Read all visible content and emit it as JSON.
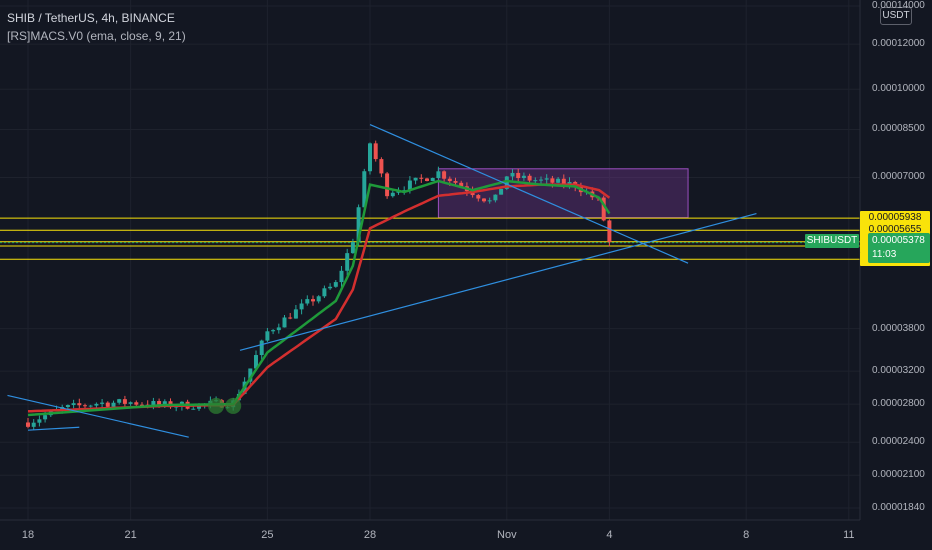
{
  "header": {
    "title": "SHIB / TetherUS, 4h, BINANCE",
    "indicator": "[RS]MACS.V0 (ema, close, 9, 21)"
  },
  "currency_button": "USDT",
  "symbol_tag": "SHIBUSDT",
  "countdown": "11:03",
  "colors": {
    "background": "#131722",
    "up": "#26a69a",
    "down": "#ef5350",
    "ema_fast": "#1f9a3a",
    "ema_slow": "#d32f2f",
    "trendline": "#2f8fe0",
    "level": "#f9e30a",
    "box": "#7e3a9a"
  },
  "chart_data": {
    "type": "candlestick",
    "title": "SHIB / TetherUS, 4h, BINANCE",
    "indicator": "[RS]MACS.V0 (ema, close, 9, 21)",
    "x_ticks": [
      {
        "label": "18",
        "day": 0
      },
      {
        "label": "21",
        "day": 3
      },
      {
        "label": "25",
        "day": 7
      },
      {
        "label": "28",
        "day": 10
      },
      {
        "label": "Nov",
        "day": 14
      },
      {
        "label": "4",
        "day": 17
      },
      {
        "label": "8",
        "day": 21
      },
      {
        "label": "11",
        "day": 24
      }
    ],
    "y_ticks": [
      "0.00014000",
      "0.00012000",
      "0.00010000",
      "0.00008500",
      "0.00007000",
      "0.00003800",
      "0.00003200",
      "0.00002800",
      "0.00002400",
      "0.00002100",
      "0.00001840"
    ],
    "y_tick_values": [
      0.00014,
      0.00012,
      0.0001,
      8.5e-05,
      7e-05,
      3.8e-05,
      3.2e-05,
      2.8e-05,
      2.4e-05,
      2.1e-05,
      1.84e-05
    ],
    "y_scale": "log",
    "horizontal_levels": [
      {
        "label": "0.00005938",
        "value": 5.938e-05
      },
      {
        "label": "0.00005655",
        "value": 5.655e-05
      },
      {
        "label": "0.00005397",
        "value": 5.397e-05
      },
      {
        "label": "0.00005307",
        "value": 5.307e-05
      },
      {
        "label": "0.00005029",
        "value": 5.029e-05
      }
    ],
    "current_price": {
      "label": "0.00005378",
      "value": 5.378e-05
    },
    "close_anchors": [
      [
        0,
        2.6e-05
      ],
      [
        1,
        2.75e-05
      ],
      [
        2,
        2.81e-05
      ],
      [
        3,
        2.82e-05
      ],
      [
        4,
        2.79e-05
      ],
      [
        5,
        2.79e-05
      ],
      [
        6,
        2.82e-05
      ],
      [
        6.3,
        3.05e-05
      ],
      [
        7,
        3.75e-05
      ],
      [
        8,
        4.15e-05
      ],
      [
        9,
        4.55e-05
      ],
      [
        9.5,
        5.45e-05
      ],
      [
        10,
        8.05e-05
      ],
      [
        10.5,
        6.6e-05
      ],
      [
        11,
        6.75e-05
      ],
      [
        12,
        7.15e-05
      ],
      [
        13,
        6.6e-05
      ],
      [
        13.6,
        6.3e-05
      ],
      [
        14,
        7.05e-05
      ],
      [
        15,
        6.9e-05
      ],
      [
        16,
        6.8e-05
      ],
      [
        16.7,
        6.35e-05
      ],
      [
        17,
        5.378e-05
      ]
    ],
    "ema_fast_anchors": [
      [
        0,
        2.68e-05
      ],
      [
        4,
        2.79e-05
      ],
      [
        6,
        2.8e-05
      ],
      [
        7,
        3.45e-05
      ],
      [
        9,
        4.25e-05
      ],
      [
        9.5,
        4.9e-05
      ],
      [
        10,
        6.8e-05
      ],
      [
        11,
        6.6e-05
      ],
      [
        12,
        6.9e-05
      ],
      [
        13,
        6.65e-05
      ],
      [
        14,
        6.9e-05
      ],
      [
        15,
        6.8e-05
      ],
      [
        16,
        6.75e-05
      ],
      [
        16.7,
        6.45e-05
      ],
      [
        17,
        6.05e-05
      ]
    ],
    "ema_slow_anchors": [
      [
        0,
        2.72e-05
      ],
      [
        4,
        2.78e-05
      ],
      [
        6,
        2.79e-05
      ],
      [
        7,
        3.25e-05
      ],
      [
        9,
        3.95e-05
      ],
      [
        9.5,
        4.45e-05
      ],
      [
        10,
        5.7e-05
      ],
      [
        11,
        6.1e-05
      ],
      [
        12,
        6.5e-05
      ],
      [
        13,
        6.6e-05
      ],
      [
        14,
        6.75e-05
      ],
      [
        15,
        6.8e-05
      ],
      [
        16,
        6.8e-05
      ],
      [
        16.7,
        6.65e-05
      ],
      [
        17,
        6.45e-05
      ]
    ],
    "trendlines": [
      {
        "from": [
          0,
          2.52e-05
        ],
        "to": [
          1.5,
          2.55e-05
        ]
      },
      {
        "from": [
          -0.6,
          2.9e-05
        ],
        "to": [
          4.7,
          2.45e-05
        ]
      },
      {
        "from": [
          6.2,
          3.48e-05
        ],
        "to": [
          21.3,
          6.05e-05
        ]
      },
      {
        "from": [
          10,
          8.67e-05
        ],
        "to": [
          19.3,
          4.95e-05
        ]
      }
    ],
    "box": {
      "day_from": 12,
      "day_to": 19.3,
      "price_from": 5.95e-05,
      "price_to": 7.25e-05
    },
    "signal_markers": [
      [
        5.5,
        2.78e-05
      ],
      [
        6.0,
        2.78e-05
      ]
    ]
  }
}
